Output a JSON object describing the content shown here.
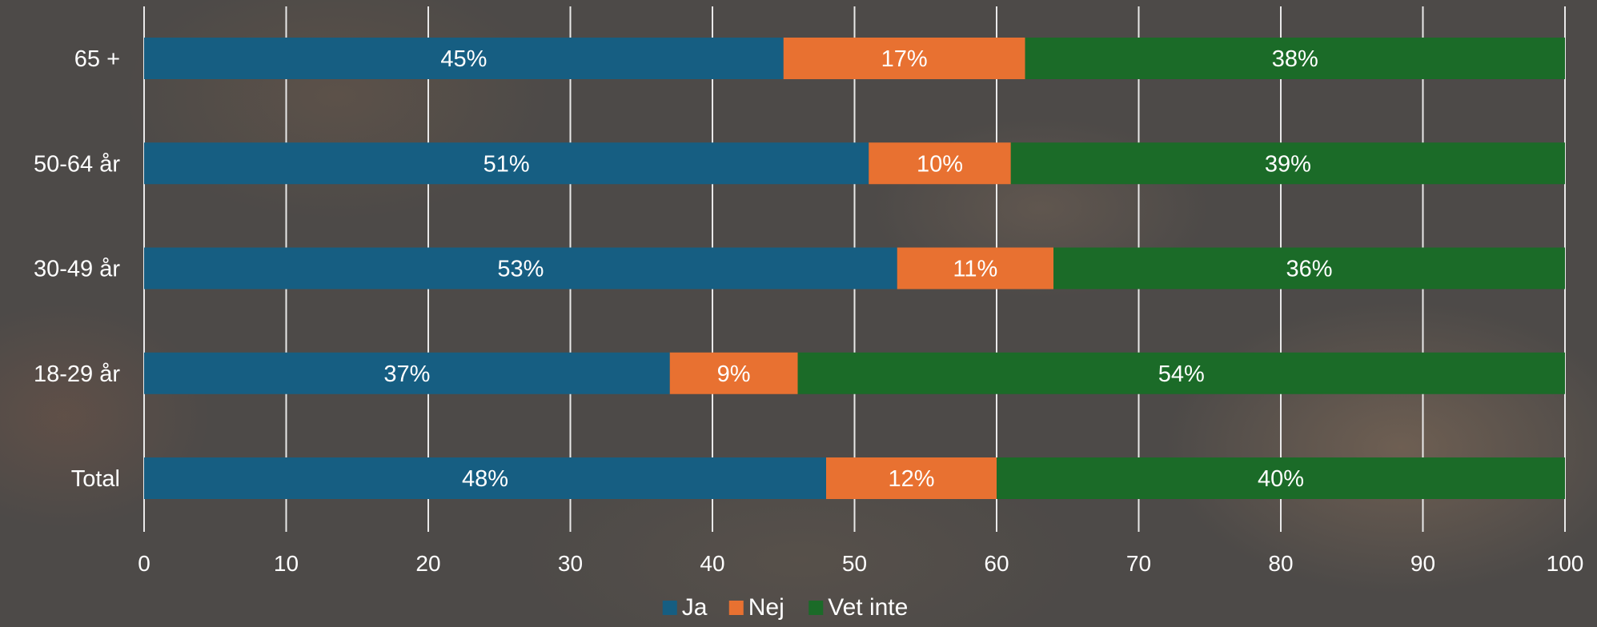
{
  "chart_data": {
    "type": "bar",
    "orientation": "horizontal",
    "stacked": true,
    "categories": [
      "65 +",
      "50-64 år",
      "30-49 år",
      "18-29 år",
      "Total"
    ],
    "series": [
      {
        "name": "Ja",
        "color": "#165e82",
        "values": [
          45,
          51,
          53,
          37,
          48
        ],
        "labels": [
          "45%",
          "51%",
          "53%",
          "37%",
          "48%"
        ]
      },
      {
        "name": "Nej",
        "color": "#e87131",
        "values": [
          17,
          10,
          11,
          9,
          12
        ],
        "labels": [
          "17%",
          "10%",
          "11%",
          "9%",
          "12%"
        ]
      },
      {
        "name": "Vet inte",
        "color": "#1b6b28",
        "values": [
          38,
          39,
          36,
          54,
          40
        ],
        "labels": [
          "38%",
          "39%",
          "36%",
          "54%",
          "40%"
        ]
      }
    ],
    "xlim": [
      0,
      100
    ],
    "xticks": [
      "0",
      "10",
      "20",
      "30",
      "40",
      "50",
      "60",
      "70",
      "80",
      "90",
      "100"
    ],
    "grid": true,
    "legend_position": "bottom"
  }
}
